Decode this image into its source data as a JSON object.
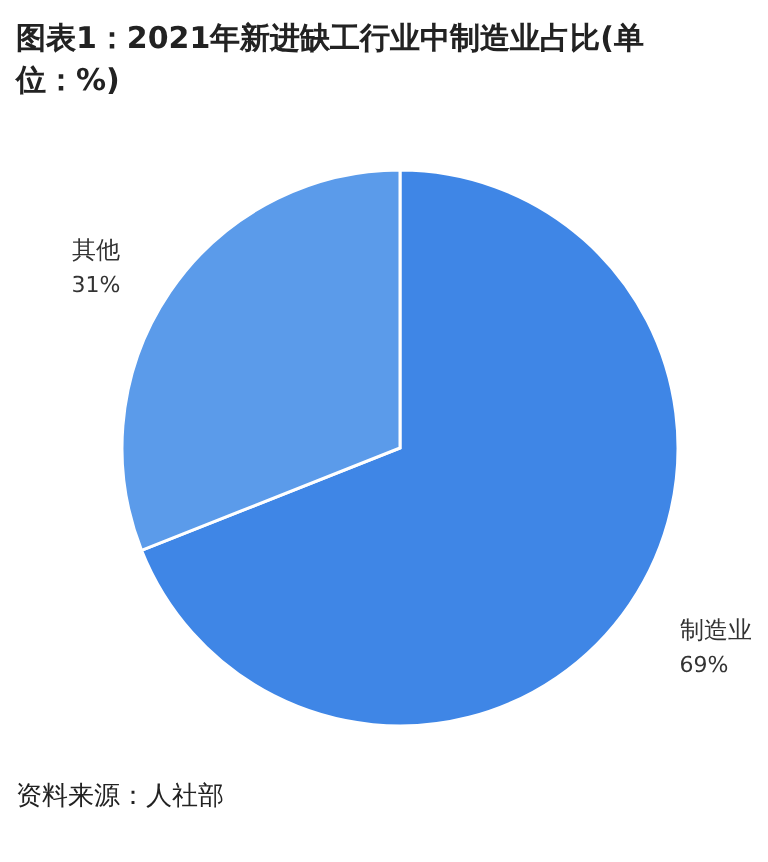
{
  "chart_data": {
    "type": "pie",
    "title": "图表1：2021年新进缺工行业中制造业占比(单位：%)",
    "categories": [
      "制造业",
      "其他"
    ],
    "values": [
      69,
      31
    ],
    "colors": [
      "#3f86e6",
      "#5b9bea"
    ],
    "value_labels": [
      "69%",
      "31%"
    ],
    "annotations": [
      "资料来源：人社部"
    ]
  }
}
